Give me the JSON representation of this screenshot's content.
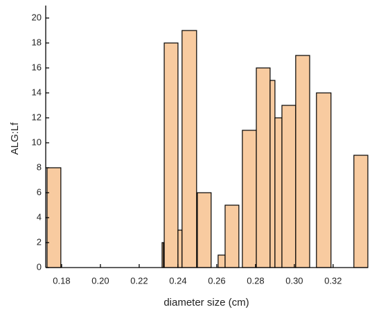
{
  "chart_data": {
    "type": "bar",
    "x_label": "diameter size (cm)",
    "y_label": "ALG:Lf",
    "x": [
      0.1725,
      0.2318,
      0.2329,
      0.24,
      0.2421,
      0.25,
      0.2607,
      0.2643,
      0.2732,
      0.2804,
      0.2875,
      0.29,
      0.2936,
      0.3007,
      0.3114,
      0.3307
    ],
    "x2": [
      0.1796,
      0.2325,
      0.24,
      0.2421,
      0.2496,
      0.2571,
      0.2643,
      0.2714,
      0.2804,
      0.2875,
      0.29,
      0.2936,
      0.3007,
      0.3079,
      0.3189,
      0.3379
    ],
    "values": [
      8,
      2,
      18,
      3,
      19,
      6,
      1,
      5,
      11,
      16,
      15,
      12,
      13,
      17,
      14,
      9
    ],
    "color": "#f8cba0",
    "xlim": [
      0.1718,
      0.3379
    ],
    "xticks": [
      0.18,
      {
        "value": 0.2,
        "label": "0.20"
      },
      0.22,
      0.24,
      0.26,
      0.28,
      {
        "value": 0.3,
        "label": "0.30"
      },
      0.32
    ],
    "ylim": [
      0,
      21
    ],
    "yticks": [
      0,
      2,
      4,
      6,
      8,
      10,
      12,
      14,
      16,
      18,
      20
    ]
  }
}
